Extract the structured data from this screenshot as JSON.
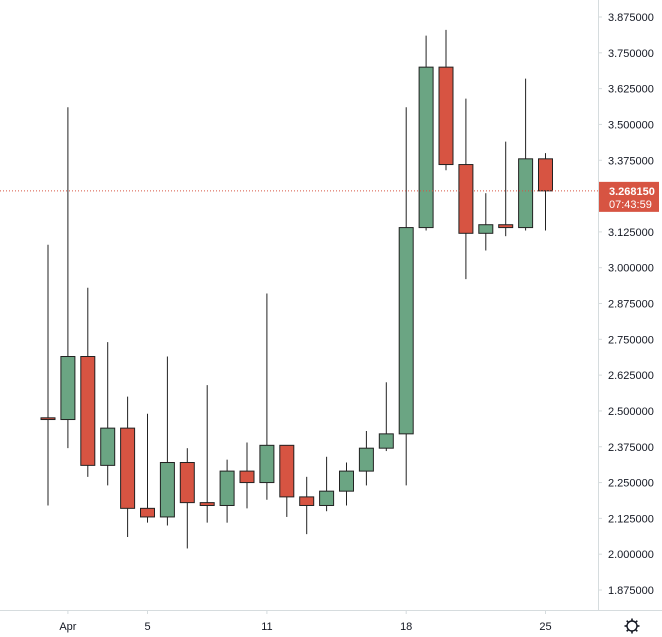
{
  "colors": {
    "up": "#6ba583",
    "down": "#d75442",
    "wick": "#222222",
    "axis_line": "#d6dcde",
    "axis_text": "#131722",
    "price_line": "#d75442"
  },
  "last_price": {
    "value": 3.26815,
    "label": "3.268150",
    "countdown": "07:43:59"
  },
  "settings_icon": "gear-icon",
  "chart_data": {
    "type": "candlestick",
    "title": "",
    "ylim": [
      1.8,
      3.92
    ],
    "y_ticks": [
      "1.875000",
      "2.000000",
      "2.125000",
      "2.250000",
      "2.375000",
      "2.500000",
      "2.625000",
      "2.750000",
      "2.875000",
      "3.000000",
      "3.125000",
      "3.250000",
      "3.375000",
      "3.500000",
      "3.625000",
      "3.750000",
      "3.875000"
    ],
    "y_tick_values": [
      1.875,
      2.0,
      2.125,
      2.25,
      2.375,
      2.5,
      2.625,
      2.75,
      2.875,
      3.0,
      3.125,
      3.25,
      3.375,
      3.5,
      3.625,
      3.75,
      3.875
    ],
    "x_ticks": [
      {
        "label": "Apr",
        "index": 1
      },
      {
        "label": "5",
        "index": 5
      },
      {
        "label": "11",
        "index": 11
      },
      {
        "label": "18",
        "index": 18
      },
      {
        "label": "25",
        "index": 25
      }
    ],
    "candles": [
      {
        "open": 2.476,
        "high": 3.08,
        "low": 2.17,
        "close": 2.47
      },
      {
        "open": 2.47,
        "high": 3.56,
        "low": 2.37,
        "close": 2.69
      },
      {
        "open": 2.69,
        "high": 2.93,
        "low": 2.27,
        "close": 2.31
      },
      {
        "open": 2.31,
        "high": 2.74,
        "low": 2.24,
        "close": 2.44
      },
      {
        "open": 2.44,
        "high": 2.55,
        "low": 2.06,
        "close": 2.16
      },
      {
        "open": 2.16,
        "high": 2.49,
        "low": 2.11,
        "close": 2.13
      },
      {
        "open": 2.13,
        "high": 2.69,
        "low": 2.1,
        "close": 2.32
      },
      {
        "open": 2.32,
        "high": 2.37,
        "low": 2.02,
        "close": 2.18
      },
      {
        "open": 2.18,
        "high": 2.59,
        "low": 2.11,
        "close": 2.17
      },
      {
        "open": 2.17,
        "high": 2.33,
        "low": 2.11,
        "close": 2.29
      },
      {
        "open": 2.29,
        "high": 2.39,
        "low": 2.16,
        "close": 2.25
      },
      {
        "open": 2.25,
        "high": 2.91,
        "low": 2.19,
        "close": 2.38
      },
      {
        "open": 2.38,
        "high": 2.38,
        "low": 2.13,
        "close": 2.2
      },
      {
        "open": 2.2,
        "high": 2.27,
        "low": 2.07,
        "close": 2.17
      },
      {
        "open": 2.17,
        "high": 2.34,
        "low": 2.15,
        "close": 2.22
      },
      {
        "open": 2.22,
        "high": 2.32,
        "low": 2.17,
        "close": 2.29
      },
      {
        "open": 2.29,
        "high": 2.43,
        "low": 2.24,
        "close": 2.37
      },
      {
        "open": 2.37,
        "high": 2.6,
        "low": 2.36,
        "close": 2.42
      },
      {
        "open": 2.42,
        "high": 3.56,
        "low": 2.24,
        "close": 3.14
      },
      {
        "open": 3.14,
        "high": 3.81,
        "low": 3.13,
        "close": 3.7
      },
      {
        "open": 3.7,
        "high": 3.83,
        "low": 3.34,
        "close": 3.36
      },
      {
        "open": 3.36,
        "high": 3.59,
        "low": 2.96,
        "close": 3.12
      },
      {
        "open": 3.12,
        "high": 3.26,
        "low": 3.06,
        "close": 3.15
      },
      {
        "open": 3.15,
        "high": 3.44,
        "low": 3.11,
        "close": 3.14
      },
      {
        "open": 3.14,
        "high": 3.66,
        "low": 3.13,
        "close": 3.38
      },
      {
        "open": 3.38,
        "high": 3.4,
        "low": 3.13,
        "close": 3.26815
      }
    ]
  }
}
